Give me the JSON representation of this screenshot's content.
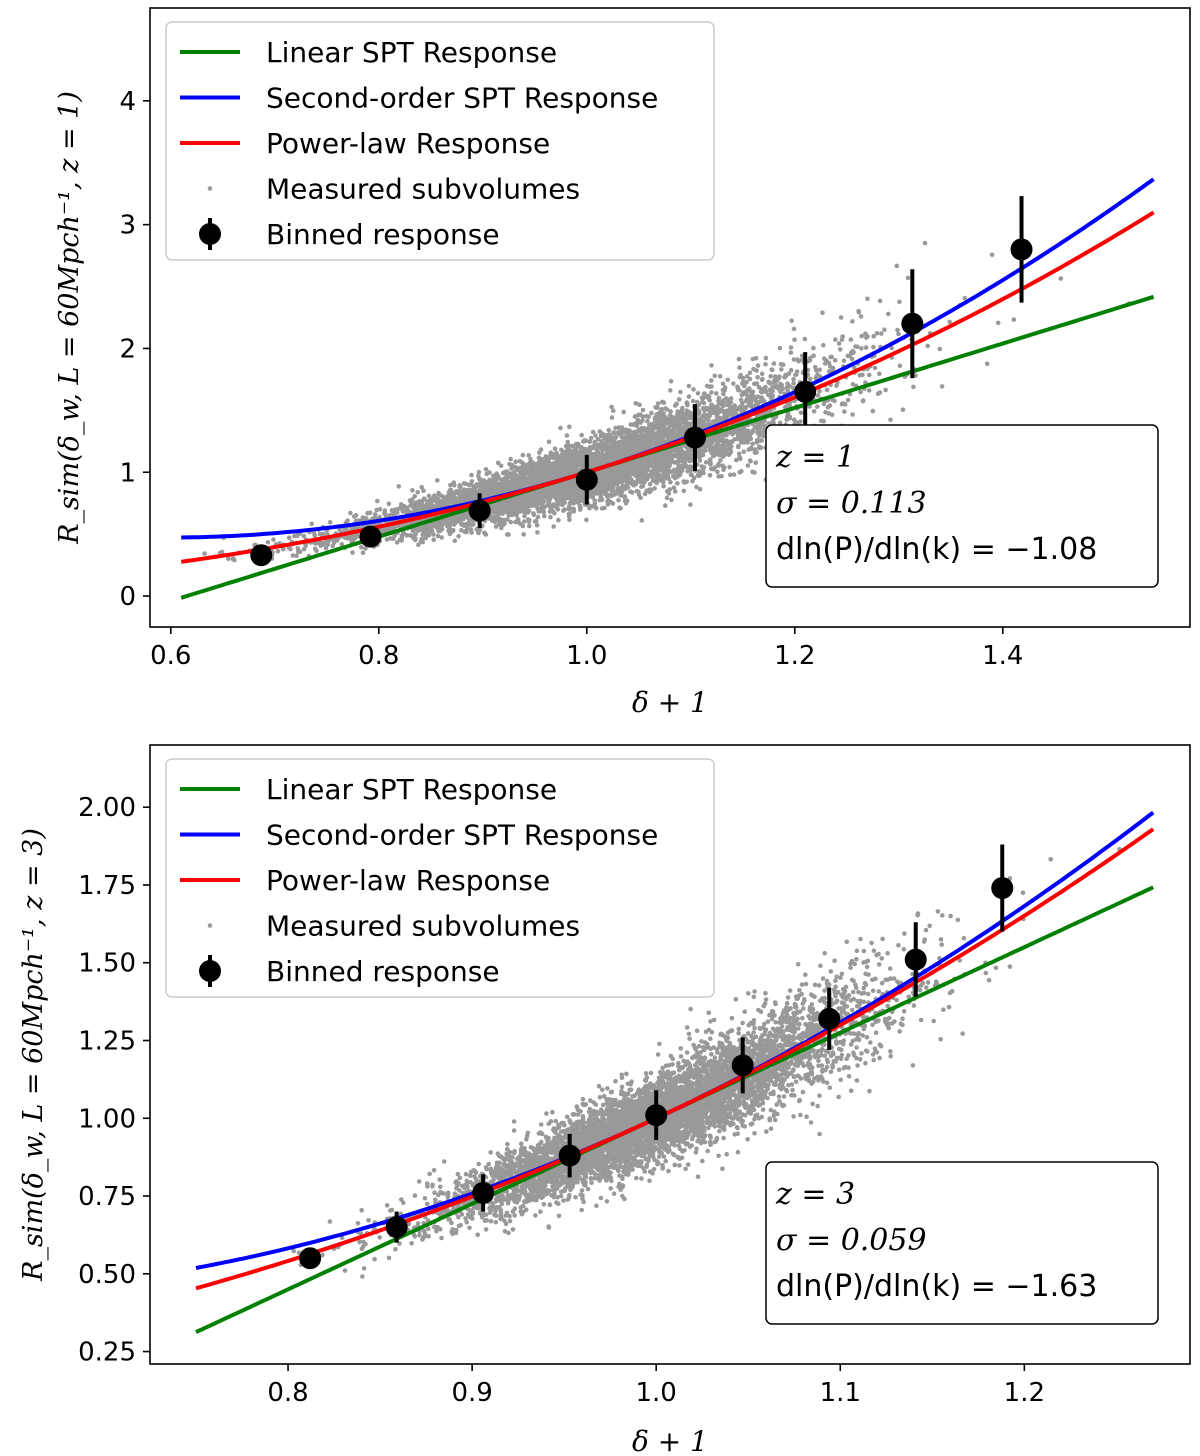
{
  "chart_data": [
    {
      "type": "scatter",
      "xlabel": "δ + 1",
      "ylabel": "R_sim(δ_w, L = 60Mpch⁻¹, z = 1)",
      "xlim": [
        0.58,
        1.58
      ],
      "ylim": [
        -0.25,
        4.75
      ],
      "xticks": [
        "0.6",
        "0.8",
        "1.0",
        "1.2",
        "1.4"
      ],
      "xtick_values": [
        0.6,
        0.8,
        1.0,
        1.2,
        1.4
      ],
      "yticks": [
        "0",
        "1",
        "2",
        "3",
        "4"
      ],
      "ytick_values": [
        0,
        1,
        2,
        3,
        4
      ],
      "legend": {
        "location": "top-left",
        "entries": [
          "Linear SPT Response",
          "Second-order SPT Response",
          "Power-law Response",
          "Measured subvolumes",
          "Binned response"
        ]
      },
      "annotation": [
        "z = 1",
        "σ = 0.113",
        "dln(P)/dln(k) = −1.08"
      ],
      "series": [
        {
          "name": "Linear SPT Response",
          "color": "#008000",
          "model": "linear",
          "params": {
            "a": 2.6
          },
          "x_range": [
            0.61,
            1.545
          ]
        },
        {
          "name": "Second-order SPT Response",
          "color": "#0000ff",
          "model": "quadratic",
          "params": {
            "a": 2.6,
            "b": 3.2
          },
          "x_range": [
            0.61,
            1.545
          ]
        },
        {
          "name": "Power-law Response",
          "color": "#ff0000",
          "model": "power",
          "params": {
            "alpha": 2.6
          },
          "x_range": [
            0.61,
            1.545
          ]
        },
        {
          "name": "Measured subvolumes",
          "color": "#999999",
          "model": "scatter-cloud",
          "params": {
            "x_center": 1.0,
            "x_sigma": 0.113,
            "y_scatter": 0.13,
            "count": 6000,
            "seed": 11
          }
        },
        {
          "name": "Binned response",
          "color": "#000000",
          "x": [
            0.687,
            0.792,
            0.897,
            1.0,
            1.104,
            1.21,
            1.313,
            1.418
          ],
          "y": [
            0.33,
            0.48,
            0.69,
            0.94,
            1.28,
            1.65,
            2.2,
            2.8
          ],
          "yerr": [
            0.05,
            0.07,
            0.14,
            0.2,
            0.27,
            0.32,
            0.44,
            0.43
          ]
        }
      ]
    },
    {
      "type": "scatter",
      "xlabel": "δ + 1",
      "ylabel": "R_sim(δ_w, L = 60Mpch⁻¹, z = 3)",
      "xlim": [
        0.725,
        1.29
      ],
      "ylim": [
        0.21,
        2.2
      ],
      "xticks": [
        "0.8",
        "0.9",
        "1.0",
        "1.1",
        "1.2"
      ],
      "xtick_values": [
        0.8,
        0.9,
        1.0,
        1.1,
        1.2
      ],
      "yticks": [
        "0.25",
        "0.50",
        "0.75",
        "1.00",
        "1.25",
        "1.50",
        "1.75",
        "2.00"
      ],
      "ytick_values": [
        0.25,
        0.5,
        0.75,
        1.0,
        1.25,
        1.5,
        1.75,
        2.0
      ],
      "legend": {
        "location": "top-left",
        "entries": [
          "Linear SPT Response",
          "Second-order SPT Response",
          "Power-law Response",
          "Measured subvolumes",
          "Binned response"
        ]
      },
      "annotation": [
        "z = 3",
        "σ = 0.059",
        "dln(P)/dln(k) = −1.63"
      ],
      "series": [
        {
          "name": "Linear SPT Response",
          "color": "#008000",
          "model": "linear",
          "params": {
            "a": 2.75
          },
          "x_range": [
            0.75,
            1.27
          ]
        },
        {
          "name": "Second-order SPT Response",
          "color": "#0000ff",
          "model": "quadratic",
          "params": {
            "a": 2.75,
            "b": 3.3
          },
          "x_range": [
            0.75,
            1.27
          ]
        },
        {
          "name": "Power-law Response",
          "color": "#ff0000",
          "model": "power",
          "params": {
            "alpha": 2.75
          },
          "x_range": [
            0.75,
            1.27
          ]
        },
        {
          "name": "Measured subvolumes",
          "color": "#999999",
          "model": "scatter-cloud",
          "params": {
            "x_center": 1.0,
            "x_sigma": 0.059,
            "y_scatter": 0.07,
            "count": 6000,
            "seed": 29
          }
        },
        {
          "name": "Binned response",
          "color": "#000000",
          "x": [
            0.812,
            0.859,
            0.906,
            0.953,
            1.0,
            1.047,
            1.094,
            1.141,
            1.188
          ],
          "y": [
            0.55,
            0.65,
            0.76,
            0.88,
            1.01,
            1.17,
            1.32,
            1.51,
            1.74
          ],
          "yerr": [
            0.02,
            0.05,
            0.06,
            0.07,
            0.08,
            0.09,
            0.1,
            0.12,
            0.14
          ]
        }
      ]
    }
  ]
}
